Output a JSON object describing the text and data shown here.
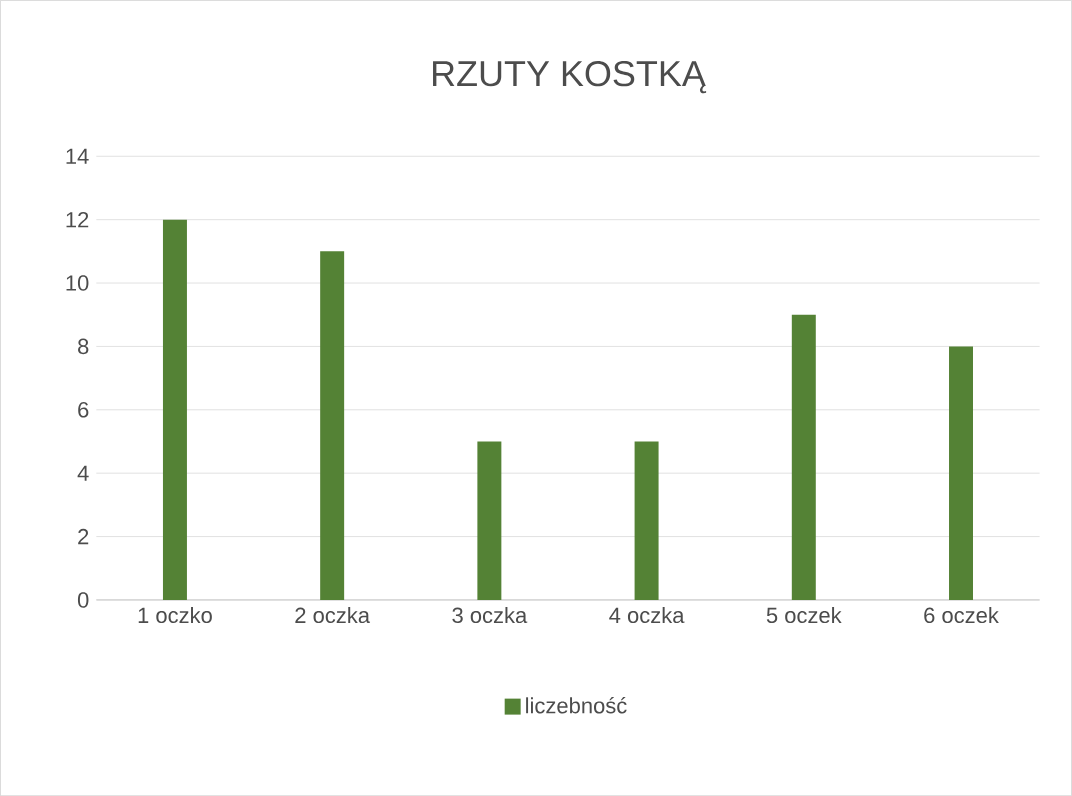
{
  "chart_data": {
    "type": "bar",
    "title": "RZUTY KOSTKĄ",
    "categories": [
      "1 oczko",
      "2 oczka",
      "3 oczka",
      "4 oczka",
      "5 oczek",
      "6 oczek"
    ],
    "series": [
      {
        "name": "liczebność",
        "color": "#548235",
        "values": [
          12,
          11,
          5,
          5,
          9,
          8
        ]
      }
    ],
    "ylim": [
      0,
      14
    ],
    "yticks": [
      0,
      2,
      4,
      6,
      8,
      10,
      12,
      14
    ],
    "grid": "y",
    "legend": "bottom"
  }
}
